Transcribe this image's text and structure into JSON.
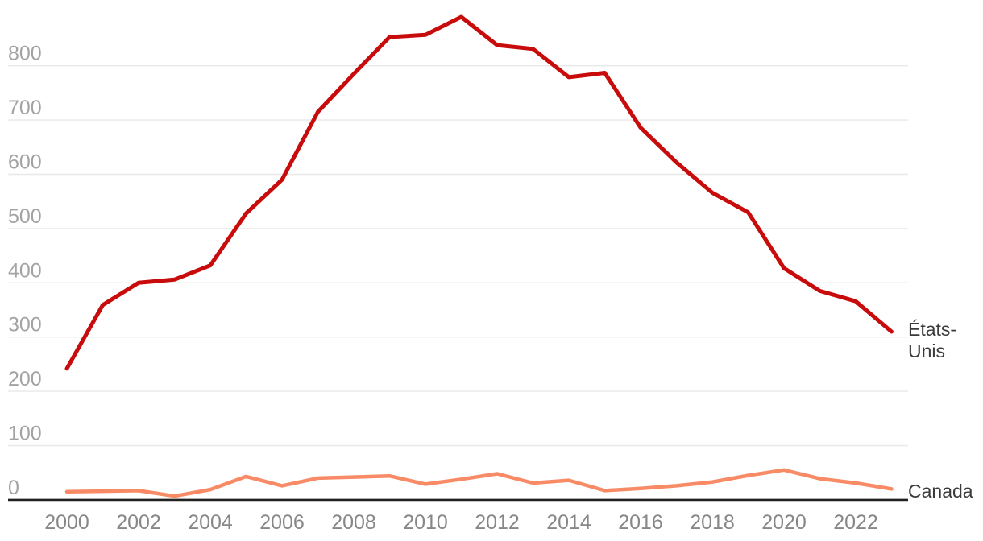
{
  "chart_data": {
    "type": "line",
    "x": [
      2000,
      2001,
      2002,
      2003,
      2004,
      2005,
      2006,
      2007,
      2008,
      2009,
      2010,
      2011,
      2012,
      2013,
      2014,
      2015,
      2016,
      2017,
      2018,
      2019,
      2020,
      2021,
      2022,
      2023
    ],
    "series": [
      {
        "name": "États-Unis",
        "color": "#c80b0b",
        "label_lines": [
          "États-",
          "Unis"
        ],
        "values": [
          242,
          359,
          400,
          406,
          432,
          528,
          590,
          715,
          785,
          853,
          857,
          890,
          838,
          831,
          779,
          787,
          686,
          622,
          566,
          530,
          427,
          385,
          366,
          310
        ]
      },
      {
        "name": "Canada",
        "color": "#f98a66",
        "label_lines": [
          "Canada"
        ],
        "values": [
          15,
          16,
          17,
          7,
          19,
          43,
          26,
          40,
          42,
          44,
          29,
          38,
          48,
          31,
          36,
          17,
          21,
          26,
          33,
          45,
          55,
          39,
          31,
          20
        ]
      }
    ],
    "yticks": [
      0,
      100,
      200,
      300,
      400,
      500,
      600,
      700,
      800
    ],
    "ytick_labels": [
      "0",
      "100",
      "200",
      "300",
      "400",
      "500",
      "600",
      "700",
      "800"
    ],
    "xticks": [
      2000,
      2002,
      2004,
      2006,
      2008,
      2010,
      2012,
      2014,
      2016,
      2018,
      2020,
      2022
    ],
    "xtick_labels": [
      "2000",
      "2002",
      "2004",
      "2006",
      "2008",
      "2010",
      "2012",
      "2014",
      "2016",
      "2018",
      "2020",
      "2022"
    ],
    "ylim": [
      0,
      890
    ],
    "xlim": [
      2000,
      2023
    ],
    "grid": "horizontal-only",
    "legend_position": "line-end-labels-right",
    "title": ""
  },
  "colors": {
    "background": "#ffffff",
    "gridline": "#e8e8e8",
    "zero_axis": "#222222",
    "y_tick_label": "#a3a3a3",
    "x_tick_label": "#878787",
    "end_label": "#3b3b3b"
  }
}
